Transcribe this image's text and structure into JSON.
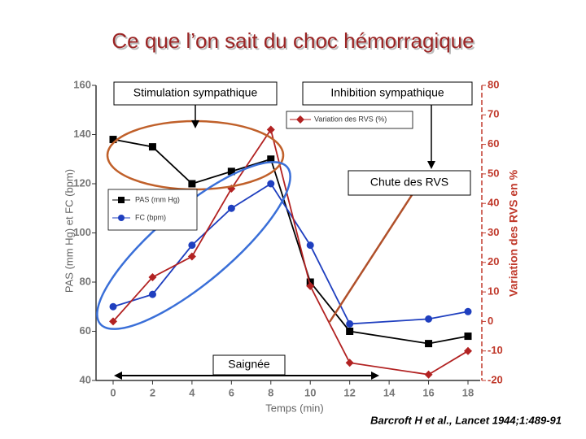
{
  "chart_data": {
    "type": "line",
    "title": "Ce que l’on sait du choc hémorragique",
    "x_label": "Temps (min)",
    "y_label": "PAS (mm Hg) et FC (bpm)",
    "y2_label": "Variation des RVS en %",
    "x": [
      0,
      2,
      4,
      6,
      8,
      10,
      12,
      16,
      18
    ],
    "xlim": [
      0,
      18
    ],
    "xticks": [
      0,
      2,
      4,
      6,
      8,
      10,
      12,
      14,
      16,
      18
    ],
    "ylim": [
      40,
      160
    ],
    "yticks": [
      40,
      60,
      80,
      100,
      120,
      140,
      160
    ],
    "y2lim": [
      -20,
      80
    ],
    "y2ticks": [
      -20,
      -10,
      0,
      10,
      20,
      30,
      40,
      50,
      60,
      70,
      80
    ],
    "series": [
      {
        "name": "PAS (mm Hg)",
        "color": "#000000",
        "marker": "square",
        "values": [
          138,
          135,
          120,
          125,
          130,
          80,
          60,
          55,
          58
        ]
      },
      {
        "name": "FC (bpm)",
        "color": "#1f3fbf",
        "marker": "circle",
        "values": [
          70,
          75,
          95,
          110,
          120,
          95,
          63,
          65,
          68
        ]
      },
      {
        "name": "Variation des RVS (%)",
        "color": "#b22222",
        "marker": "diamond",
        "axis": "y2",
        "values": [
          0,
          15,
          22,
          45,
          65,
          12,
          -14,
          -18,
          -10
        ]
      }
    ],
    "annotations": [
      "Stimulation sympathique",
      "Inhibition sympathique",
      "Chute des RVS",
      "Saignée"
    ],
    "source": "Barcroft H et al., Lancet 1944;1:489-91"
  }
}
